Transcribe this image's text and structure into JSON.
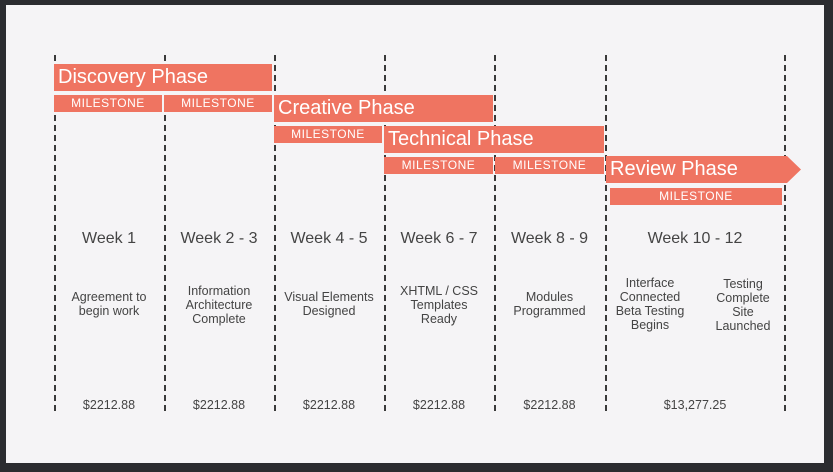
{
  "phases": [
    {
      "name": "Discovery Phase"
    },
    {
      "name": "Creative Phase"
    },
    {
      "name": "Technical Phase"
    },
    {
      "name": "Review Phase"
    }
  ],
  "milestone_label": "MILESTONE",
  "weeks": [
    "Week 1",
    "Week 2 - 3",
    "Week 4 - 5",
    "Week 6 - 7",
    "Week 8 - 9",
    "Week 10 - 12"
  ],
  "deliverables": [
    "Agreement to\nbegin work",
    "Information\nArchitecture\nComplete",
    "Visual Elements\nDesigned",
    "XHTML / CSS\nTemplates\nReady",
    "Modules\nProgrammed",
    "Interface\nConnected\nBeta Testing\nBegins",
    "Testing\nComplete\nSite\nLaunched"
  ],
  "costs": [
    "$2212.88",
    "$2212.88",
    "$2212.88",
    "$2212.88",
    "$2212.88",
    "$13,277.25"
  ],
  "colors": {
    "accent": "#ef7461",
    "line": "#3a3a3a",
    "background": "#f5f4f6"
  }
}
